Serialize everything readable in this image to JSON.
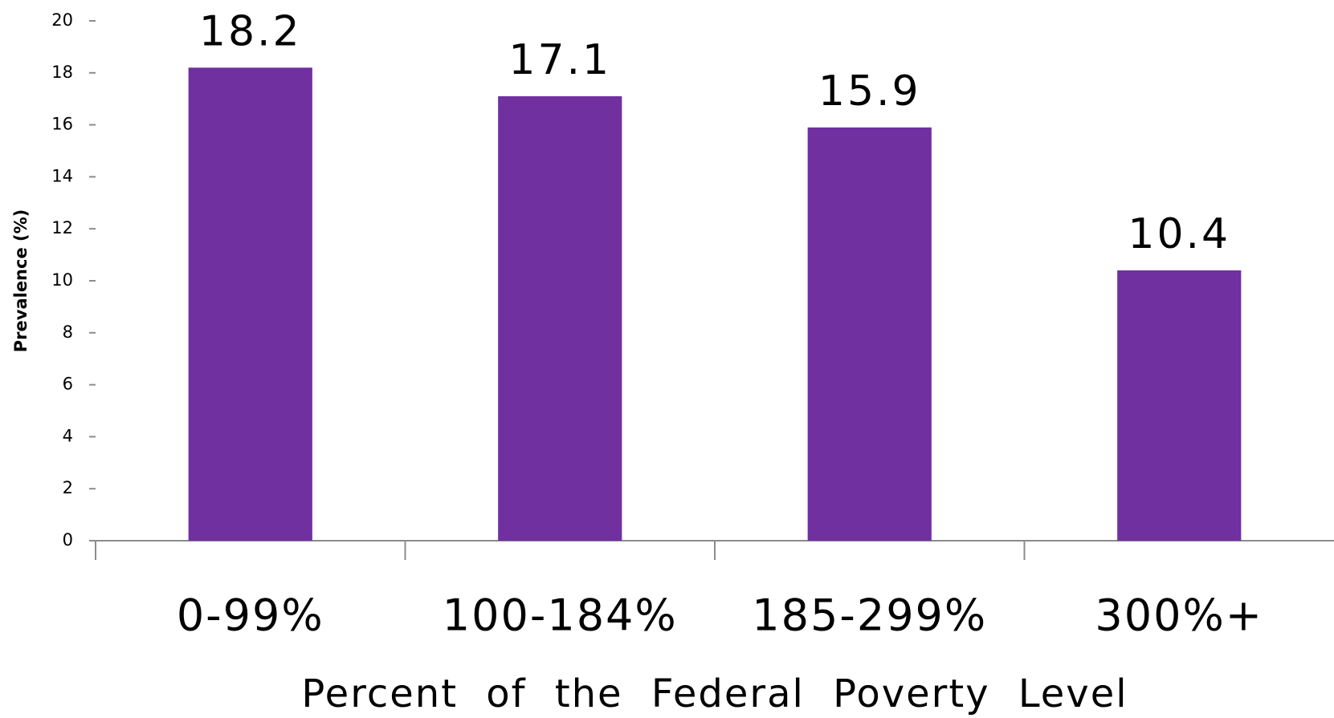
{
  "chart_data": {
    "type": "bar",
    "categories": [
      "0-99%",
      "100-184%",
      "185-299%",
      "300%+"
    ],
    "values": [
      18.2,
      17.1,
      15.9,
      10.4
    ],
    "color": "#7030a0",
    "ylim": [
      0,
      20
    ],
    "yticks": [
      0,
      2,
      4,
      6,
      8,
      10,
      12,
      14,
      16,
      18,
      20
    ],
    "grid": false,
    "xlabel": "Percent of the Federal Poverty Level",
    "ylabel": "Prevalence (%)"
  }
}
